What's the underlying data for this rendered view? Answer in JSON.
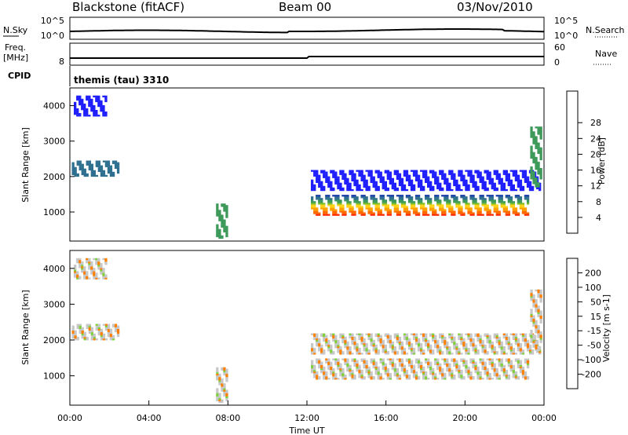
{
  "header": {
    "title": "Blackstone (fitACF)",
    "beam": "Beam 00",
    "date": "03/Nov/2010"
  },
  "top_panels": {
    "sky": {
      "left_label": "N.Sky",
      "right_label": "N.Search",
      "top_tick": "10^5",
      "bottom_tick": "10^0"
    },
    "freq": {
      "left_label_1": "Freq.",
      "left_label_2": "[MHz]",
      "left_tick": "8",
      "right_label": "Nave",
      "right_top_tick": "60",
      "right_bottom_tick": "0"
    },
    "cpid": {
      "label": "CPID",
      "value": "themis (tau) 3310"
    }
  },
  "chart_data": [
    {
      "type": "heatmap",
      "title": "",
      "ylabel": "Slant Range [km]",
      "ylim": [
        180,
        4500
      ],
      "y_ticks": [
        "1000",
        "2000",
        "3000",
        "4000"
      ],
      "colorbar": {
        "label": "Power [dB]",
        "ticks": [
          "4",
          "8",
          "12",
          "16",
          "20",
          "24",
          "28"
        ],
        "colors": [
          "#1f1fff",
          "#1b3fa8",
          "#2f6f8f",
          "#3e9a5a",
          "#7fbf2a",
          "#ffd21a",
          "#ffa000",
          "#ff6a00",
          "#ff2a00"
        ],
        "range": [
          0,
          32
        ]
      },
      "regions": [
        {
          "t0": 0.2,
          "t1": 1.8,
          "r0": 3700,
          "r1": 4250,
          "level": 0
        },
        {
          "t0": 0.1,
          "t1": 2.4,
          "r0": 2000,
          "r1": 2450,
          "level": 2
        },
        {
          "t0": 7.4,
          "t1": 7.9,
          "r0": 250,
          "r1": 1200,
          "level": 3
        },
        {
          "t0": 12.2,
          "t1": 23.2,
          "r0": 900,
          "r1": 1450,
          "level": 6
        },
        {
          "t0": 12.2,
          "t1": 23.8,
          "r0": 1600,
          "r1": 2150,
          "level": 0
        },
        {
          "t0": 23.3,
          "t1": 23.9,
          "r0": 1700,
          "r1": 3400,
          "level": 3
        }
      ]
    },
    {
      "type": "heatmap",
      "title": "",
      "ylabel": "Slant Range [km]",
      "ylim": [
        180,
        4500
      ],
      "y_ticks": [
        "1000",
        "2000",
        "3000",
        "4000"
      ],
      "colorbar": {
        "label": "Velocity [m s-1]",
        "ticks": [
          "200",
          "100",
          "50",
          "15",
          "-15",
          "-50",
          "-100",
          "-200"
        ],
        "colors": [
          "#1f3fbf",
          "#2f6f7f",
          "#3ea060",
          "#7fd03a",
          "#c8c8c8",
          "#ffb020",
          "#ff8000",
          "#ff3a00",
          "#ff0000"
        ],
        "range": [
          -250,
          250
        ]
      },
      "regions": [
        {
          "t0": 0.2,
          "t1": 1.8,
          "r0": 3700,
          "r1": 4250,
          "level": 4
        },
        {
          "t0": 0.1,
          "t1": 2.4,
          "r0": 2000,
          "r1": 2450,
          "level": 4
        },
        {
          "t0": 7.4,
          "t1": 7.9,
          "r0": 250,
          "r1": 1200,
          "level": 4
        },
        {
          "t0": 12.2,
          "t1": 23.2,
          "r0": 900,
          "r1": 1450,
          "level": 4
        },
        {
          "t0": 12.2,
          "t1": 23.8,
          "r0": 1600,
          "r1": 2150,
          "level": 4
        },
        {
          "t0": 23.3,
          "t1": 23.9,
          "r0": 1700,
          "r1": 3400,
          "level": 4
        }
      ]
    }
  ],
  "x_axis": {
    "label": "Time UT",
    "ticks": [
      "00:00",
      "04:00",
      "08:00",
      "12:00",
      "16:00",
      "20:00",
      "00:00"
    ],
    "range_hours": [
      0,
      24
    ]
  }
}
